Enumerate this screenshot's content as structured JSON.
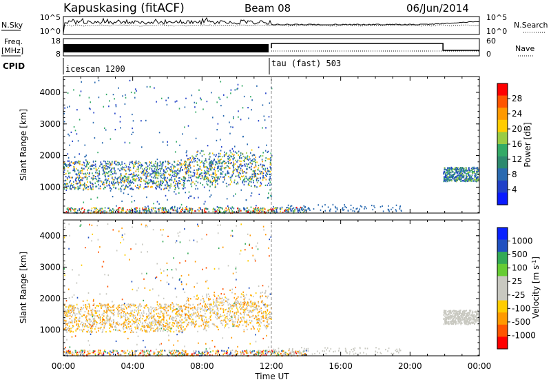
{
  "header": {
    "station": "Kapuskasing (fitACF)",
    "beam": "Beam 08",
    "date": "06/Jun/2014"
  },
  "noise_panel": {
    "left_label": "N.Sky",
    "left_ticks": [
      "10^5",
      "10^0"
    ],
    "right_label": "N.Search",
    "right_ticks": [
      "10^5",
      "10^0"
    ]
  },
  "freq_panel": {
    "left_label": "Freq.",
    "left_unit": "[MHz]",
    "left_ticks": [
      "18",
      "8"
    ],
    "right_label": "Nave",
    "right_ticks": [
      "60",
      "0"
    ]
  },
  "cpid": {
    "label": "CPID",
    "segments": [
      {
        "name": "icescan 1200",
        "start_hour": 0,
        "end_hour": 12
      },
      {
        "name": "tau (fast) 503",
        "start_hour": 12,
        "end_hour": 24
      }
    ]
  },
  "chart_data": [
    {
      "type": "heatmap",
      "quantity": "Power",
      "ylabel": "Slant Range [km]",
      "colorbar_label": "Power [dB]",
      "colorbar_ticks": [
        "28",
        "24",
        "20",
        "16",
        "12",
        "8",
        "4"
      ],
      "colorbar_colors": [
        "#ff0000",
        "#ff5500",
        "#ff9900",
        "#ffcc00",
        "#99cc44",
        "#33aa66",
        "#2d8a6e",
        "#2a6ab0",
        "#2040c8",
        "#0a1aff"
      ],
      "xlim_hours": [
        0,
        24
      ],
      "ylim_km": [
        180,
        4500
      ],
      "y_ticks": [
        "4000",
        "3000",
        "2000",
        "1000"
      ],
      "mode_change_hour": 12
    },
    {
      "type": "heatmap",
      "quantity": "Velocity",
      "ylabel": "Slant Range [km]",
      "colorbar_label": "Velocity [m s^-1]",
      "colorbar_ticks": [
        "1000",
        "500",
        "100",
        "25",
        "-25",
        "-100",
        "-500",
        "-1000"
      ],
      "colorbar_colors": [
        "#0a22ff",
        "#2050c0",
        "#33aa55",
        "#66cc33",
        "#c8c8c0",
        "#c8c8c0",
        "#ffcc00",
        "#ff9900",
        "#ff5500",
        "#ff0000"
      ],
      "xlim_hours": [
        0,
        24
      ],
      "ylim_km": [
        180,
        4500
      ],
      "y_ticks": [
        "4000",
        "3000",
        "2000",
        "1000"
      ],
      "mode_change_hour": 12
    }
  ],
  "time_axis": {
    "ticks": [
      "00:00",
      "04:00",
      "08:00",
      "12:00",
      "16:00",
      "20:00",
      "00:00"
    ],
    "label": "Time UT"
  }
}
